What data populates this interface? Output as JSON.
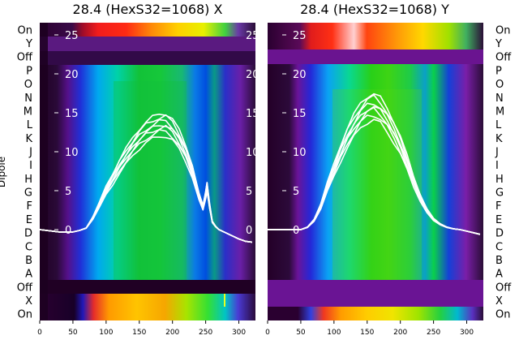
{
  "chart_data": [
    {
      "type": "heatmap",
      "title": "28.4 (HexS32=1068) X",
      "ylabel": "Dipole",
      "row_labels": [
        "On",
        "Y",
        "Off",
        "P",
        "O",
        "N",
        "M",
        "L",
        "K",
        "J",
        "I",
        "H",
        "G",
        "F",
        "E",
        "D",
        "C",
        "B",
        "A",
        "Off",
        "X",
        "On"
      ],
      "x_ticks": [
        0,
        50,
        100,
        150,
        200,
        250,
        300
      ],
      "xlim": [
        0,
        325
      ],
      "overlay_ticks": [
        0,
        5,
        10,
        15,
        20,
        25
      ],
      "overlay": {
        "type": "line",
        "x": [
          0,
          30,
          50,
          60,
          70,
          80,
          90,
          100,
          110,
          120,
          130,
          140,
          150,
          160,
          170,
          180,
          190,
          200,
          210,
          220,
          230,
          240,
          246,
          250,
          252,
          256,
          260,
          265,
          270,
          280,
          290,
          300,
          310,
          320
        ],
        "y": [
          0,
          -0.3,
          -0.3,
          -0.1,
          0.2,
          1.5,
          3.2,
          5,
          6.5,
          8.1,
          9.4,
          10.6,
          11.7,
          12.5,
          13,
          13.4,
          13.5,
          12.8,
          11.5,
          9.8,
          7.5,
          4.2,
          2.8,
          4.5,
          5.5,
          3,
          1,
          0.4,
          0,
          -0.4,
          -0.8,
          -1.2,
          -1.5,
          -1.6
        ],
        "spread": 1.5
      }
    },
    {
      "type": "heatmap",
      "title": "28.4 (HexS32=1068) Y",
      "ylabel": "",
      "row_labels": [
        "On",
        "Y",
        "Off",
        "P",
        "O",
        "N",
        "M",
        "L",
        "K",
        "J",
        "I",
        "H",
        "G",
        "F",
        "E",
        "D",
        "C",
        "B",
        "A",
        "Off",
        "X",
        "On"
      ],
      "x_ticks": [
        0,
        50,
        100,
        150,
        200,
        250,
        300
      ],
      "xlim": [
        0,
        325
      ],
      "overlay_ticks": [
        0,
        5,
        10,
        15,
        20,
        25
      ],
      "overlay": {
        "type": "line",
        "x": [
          0,
          30,
          50,
          60,
          70,
          80,
          90,
          100,
          110,
          120,
          130,
          140,
          150,
          160,
          170,
          180,
          190,
          200,
          210,
          220,
          230,
          240,
          250,
          260,
          270,
          280,
          290,
          300,
          310,
          320
        ],
        "y": [
          0,
          0,
          0,
          0.3,
          1.2,
          3,
          5.5,
          7.6,
          9.8,
          11.8,
          13.3,
          14.6,
          15.5,
          15.8,
          15.2,
          14.1,
          12.6,
          10.8,
          8.6,
          6.2,
          4.1,
          2.4,
          1.3,
          0.7,
          0.3,
          0.1,
          0,
          -0.2,
          -0.4,
          -0.6
        ],
        "spread": 1.5
      }
    }
  ]
}
